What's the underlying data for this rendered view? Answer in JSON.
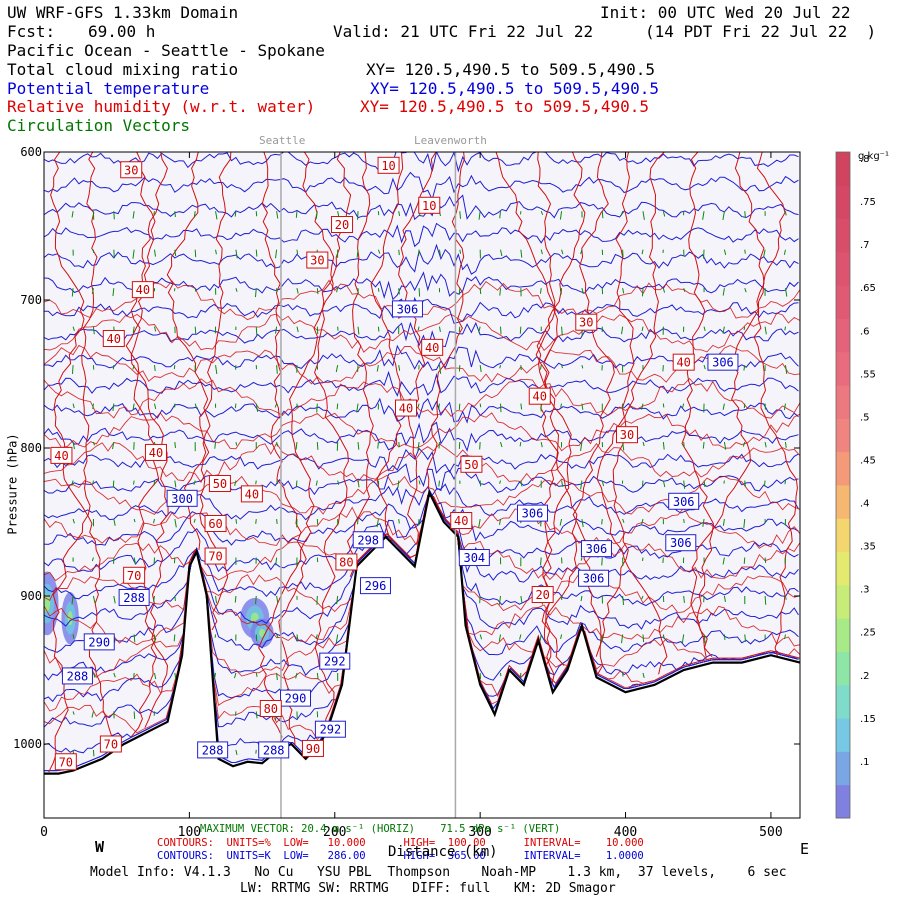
{
  "header": {
    "model": "UW WRF-GFS 1.33km Domain",
    "init": "Init: 00 UTC Wed 20 Jul 22",
    "fcst_label": "Fcst:",
    "fcst_value": "69.00 h",
    "valid": "Valid: 21 UTC Fri 22 Jul 22",
    "valid_local": "(14 PDT Fri 22 Jul 22  )",
    "region": "Pacific Ocean - Seattle - Spokane",
    "field1": "Total cloud mixing ratio",
    "field1_xy": "XY= 120.5,490.5 to 509.5,490.5",
    "field2": "Potential temperature",
    "field2_xy": "XY= 120.5,490.5 to 509.5,490.5",
    "field3": "Relative humidity (w.r.t. water)",
    "field3_xy": "XY= 120.5,490.5 to 509.5,490.5",
    "field4": "Circulation Vectors"
  },
  "places": {
    "seattle": "Seattle",
    "leavenworth": "Leavenworth"
  },
  "colorbar": {
    "unit": "g kg⁻¹",
    "labels": [
      ".8",
      ".75",
      ".7",
      ".65",
      ".6",
      ".55",
      ".5",
      ".45",
      ".4",
      ".35",
      ".3",
      ".25",
      ".2",
      ".15",
      ".1"
    ],
    "colors": [
      "#8080e0",
      "#7aa6e6",
      "#76c8e4",
      "#7fdccb",
      "#8ee6a6",
      "#a8ea88",
      "#c8ec78",
      "#e4ea70",
      "#f4d66e",
      "#f6b870",
      "#f49a78",
      "#f0847e",
      "#ec7880",
      "#e86c7e",
      "#e4627a",
      "#e05a74",
      "#dc5470",
      "#d84e6a",
      "#d44866",
      "#d04460"
    ]
  },
  "footer": {
    "max_vector": "MAXIMUM VECTOR: 20.4 m s⁻¹ (HORIZ)    71.5 dPa s⁻¹ (VERT)",
    "rh_contours": "CONTOURS:  UNITS=%  LOW=   10.000      HIGH=  100.00      INTERVAL=    10.000",
    "th_contours": "CONTOURS:  UNITS=K  LOW=   286.00      HIGH=  365.00      INTERVAL=    1.0000",
    "model_info": "Model Info: V4.1.3   No Cu   YSU PBL  Thompson    Noah-MP    1.3 km,  37 levels,    6 sec",
    "physics": "LW: RRTMG SW: RRTMG   DIFF: full   KM: 2D Smagor",
    "west": "W",
    "east": "E",
    "xlabel": "Distance (km)",
    "ylabel": "Pressure (hPa)"
  },
  "chart_data": {
    "type": "contour",
    "title": "Cross section: Pacific Ocean - Seattle - Spokane",
    "xlabel": "Distance (km)",
    "ylabel": "Pressure (hPa)",
    "xlim": [
      0,
      520
    ],
    "ylim": [
      1050,
      600
    ],
    "x_ticks": [
      0,
      100,
      200,
      300,
      400,
      500
    ],
    "y_ticks": [
      600,
      700,
      800,
      900,
      1000
    ],
    "y_tick_labels": [
      "600",
      "700",
      "800",
      "900",
      "1000"
    ],
    "terrain": {
      "x": [
        0,
        10,
        20,
        40,
        55,
        65,
        75,
        85,
        95,
        100,
        105,
        112,
        120,
        130,
        140,
        150,
        160,
        170,
        180,
        190,
        195,
        205,
        215,
        225,
        235,
        245,
        255,
        265,
        275,
        285,
        290,
        300,
        310,
        320,
        330,
        340,
        350,
        360,
        370,
        380,
        400,
        420,
        440,
        460,
        480,
        500,
        520
      ],
      "p": [
        1020,
        1020,
        1018,
        1010,
        1000,
        995,
        990,
        985,
        940,
        880,
        870,
        900,
        1010,
        1015,
        1012,
        1013,
        1005,
        1000,
        1010,
        1000,
        990,
        960,
        880,
        870,
        860,
        870,
        880,
        830,
        850,
        860,
        920,
        960,
        980,
        950,
        960,
        930,
        965,
        950,
        920,
        955,
        965,
        960,
        950,
        945,
        945,
        940,
        945
      ]
    },
    "potential_temperature": {
      "units": "K",
      "contour_low": 286,
      "contour_high": 365,
      "interval": 1,
      "labels": [
        {
          "value": 306,
          "x": 250,
          "p": 706
        },
        {
          "value": 306,
          "x": 467,
          "p": 742
        },
        {
          "value": 300,
          "x": 95,
          "p": 834
        },
        {
          "value": 306,
          "x": 336,
          "p": 844
        },
        {
          "value": 306,
          "x": 440,
          "p": 836
        },
        {
          "value": 306,
          "x": 380,
          "p": 868
        },
        {
          "value": 306,
          "x": 438,
          "p": 864
        },
        {
          "value": 306,
          "x": 378,
          "p": 888
        },
        {
          "value": 304,
          "x": 296,
          "p": 874
        },
        {
          "value": 298,
          "x": 223,
          "p": 862
        },
        {
          "value": 296,
          "x": 228,
          "p": 893
        },
        {
          "value": 292,
          "x": 200,
          "p": 944
        },
        {
          "value": 292,
          "x": 197,
          "p": 990
        },
        {
          "value": 290,
          "x": 38,
          "p": 931
        },
        {
          "value": 290,
          "x": 173,
          "p": 969
        },
        {
          "value": 288,
          "x": 23,
          "p": 954
        },
        {
          "value": 288,
          "x": 62,
          "p": 901
        },
        {
          "value": 288,
          "x": 116,
          "p": 1004
        },
        {
          "value": 288,
          "x": 158,
          "p": 1004
        }
      ]
    },
    "relative_humidity": {
      "units": "%",
      "contour_low": 10,
      "contour_high": 100,
      "interval": 10,
      "labels": [
        {
          "value": 30,
          "x": 60,
          "p": 612
        },
        {
          "value": 10,
          "x": 237,
          "p": 609
        },
        {
          "value": 10,
          "x": 265,
          "p": 636
        },
        {
          "value": 20,
          "x": 205,
          "p": 649
        },
        {
          "value": 30,
          "x": 188,
          "p": 673
        },
        {
          "value": 40,
          "x": 68,
          "p": 693
        },
        {
          "value": 40,
          "x": 48,
          "p": 726
        },
        {
          "value": 30,
          "x": 373,
          "p": 715
        },
        {
          "value": 40,
          "x": 440,
          "p": 742
        },
        {
          "value": 40,
          "x": 267,
          "p": 732
        },
        {
          "value": 40,
          "x": 341,
          "p": 765
        },
        {
          "value": 40,
          "x": 249,
          "p": 773
        },
        {
          "value": 30,
          "x": 401,
          "p": 791
        },
        {
          "value": 40,
          "x": 12,
          "p": 805
        },
        {
          "value": 40,
          "x": 77,
          "p": 803
        },
        {
          "value": 50,
          "x": 294,
          "p": 811
        },
        {
          "value": 50,
          "x": 121,
          "p": 824
        },
        {
          "value": 40,
          "x": 143,
          "p": 831
        },
        {
          "value": 60,
          "x": 118,
          "p": 851
        },
        {
          "value": 40,
          "x": 287,
          "p": 849
        },
        {
          "value": 70,
          "x": 118,
          "p": 873
        },
        {
          "value": 80,
          "x": 208,
          "p": 877
        },
        {
          "value": 70,
          "x": 62,
          "p": 886
        },
        {
          "value": 20,
          "x": 343,
          "p": 899
        },
        {
          "value": 70,
          "x": 46,
          "p": 1000
        },
        {
          "value": 80,
          "x": 156,
          "p": 976
        },
        {
          "value": 90,
          "x": 185,
          "p": 1003
        },
        {
          "value": 70,
          "x": 15,
          "p": 1012
        }
      ]
    },
    "markers": [
      {
        "name": "Seattle",
        "x": 163
      },
      {
        "name": "Leavenworth",
        "x": 283
      }
    ],
    "colorbar_range": [
      0.05,
      0.8
    ],
    "colorbar_step": 0.05
  }
}
